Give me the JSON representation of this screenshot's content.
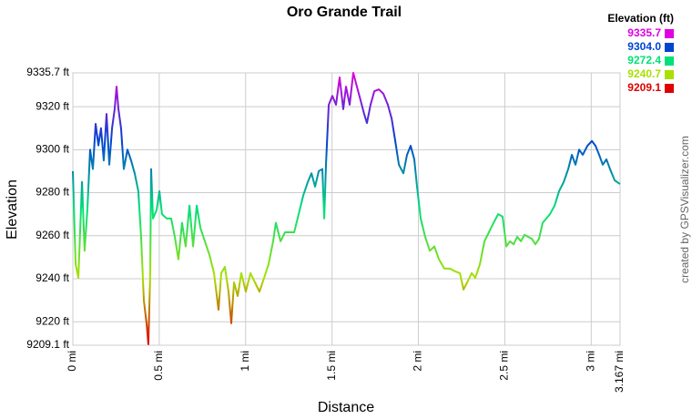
{
  "chart_data": {
    "type": "line",
    "title": "Oro Grande Trail",
    "xlabel": "Distance",
    "ylabel": "Elevation",
    "credit": "created by GPSVisualizer.com",
    "legend_title": "Elevation (ft)",
    "color_scale": [
      {
        "value": 9335.7,
        "color": "#e000e0"
      },
      {
        "value": 9304,
        "label": "9304.0",
        "color": "#0044d0"
      },
      {
        "value": 9272.4,
        "color": "#00e07a"
      },
      {
        "value": 9240.7,
        "color": "#a8e000"
      },
      {
        "value": 9209.1,
        "color": "#e00000"
      }
    ],
    "grid": true,
    "xlim": [
      0,
      3.167
    ],
    "xticks": [
      {
        "value": 0,
        "label": "0 mi"
      },
      {
        "value": 0.5,
        "label": "0.5 mi"
      },
      {
        "value": 1,
        "label": "1 mi"
      },
      {
        "value": 1.5,
        "label": "1.5 mi"
      },
      {
        "value": 2,
        "label": "2 mi"
      },
      {
        "value": 2.5,
        "label": "2.5 mi"
      },
      {
        "value": 3,
        "label": "3 mi"
      },
      {
        "value": 3.167,
        "label": "3.167 mi"
      }
    ],
    "ylim": [
      9209.1,
      9335.7
    ],
    "yticks": [
      {
        "value": 9209.1,
        "label": "9209.1 ft"
      },
      {
        "value": 9220,
        "label": "9220 ft"
      },
      {
        "value": 9240,
        "label": "9240 ft"
      },
      {
        "value": 9260,
        "label": "9260 ft"
      },
      {
        "value": 9280,
        "label": "9280 ft"
      },
      {
        "value": 9300,
        "label": "9300 ft"
      },
      {
        "value": 9320,
        "label": "9320 ft"
      },
      {
        "value": 9335.7,
        "label": "9335.7 ft"
      }
    ],
    "x": [
      0,
      0.016,
      0.032,
      0.053,
      0.068,
      0.084,
      0.1,
      0.116,
      0.132,
      0.148,
      0.163,
      0.179,
      0.195,
      0.211,
      0.227,
      0.242,
      0.253,
      0.264,
      0.279,
      0.295,
      0.316,
      0.337,
      0.358,
      0.379,
      0.395,
      0.411,
      0.427,
      0.437,
      0.448,
      0.453,
      0.464,
      0.485,
      0.501,
      0.516,
      0.543,
      0.569,
      0.59,
      0.611,
      0.632,
      0.653,
      0.675,
      0.696,
      0.717,
      0.738,
      0.764,
      0.791,
      0.817,
      0.843,
      0.859,
      0.88,
      0.901,
      0.917,
      0.933,
      0.954,
      0.975,
      1.001,
      1.028,
      1.054,
      1.08,
      1.107,
      1.133,
      1.159,
      1.175,
      1.202,
      1.228,
      1.254,
      1.281,
      1.307,
      1.333,
      1.36,
      1.381,
      1.402,
      1.423,
      1.444,
      1.455,
      1.465,
      1.481,
      1.502,
      1.523,
      1.544,
      1.565,
      1.581,
      1.602,
      1.623,
      1.644,
      1.665,
      1.686,
      1.702,
      1.723,
      1.745,
      1.771,
      1.797,
      1.823,
      1.845,
      1.866,
      1.887,
      1.913,
      1.934,
      1.955,
      1.976,
      1.992,
      2.013,
      2.039,
      2.066,
      2.092,
      2.119,
      2.15,
      2.182,
      2.213,
      2.24,
      2.261,
      2.282,
      2.308,
      2.329,
      2.356,
      2.382,
      2.408,
      2.435,
      2.461,
      2.487,
      2.509,
      2.53,
      2.551,
      2.572,
      2.593,
      2.614,
      2.635,
      2.656,
      2.677,
      2.698,
      2.719,
      2.74,
      2.761,
      2.788,
      2.814,
      2.841,
      2.867,
      2.888,
      2.909,
      2.93,
      2.951,
      2.978,
      3.004,
      3.025,
      3.046,
      3.067,
      3.088,
      3.109,
      3.136,
      3.167
    ],
    "values": [
      9290,
      9246.8,
      9240.4,
      9285,
      9253,
      9272,
      9300,
      9291,
      9312,
      9302,
      9310,
      9295,
      9316.6,
      9293,
      9310,
      9318.8,
      9329.3,
      9318.8,
      9310,
      9291,
      9300,
      9295,
      9289,
      9280.7,
      9259.5,
      9229.9,
      9219,
      9209.6,
      9242.6,
      9291,
      9268,
      9272,
      9280.7,
      9270,
      9268,
      9268,
      9259.5,
      9249,
      9266,
      9255,
      9274,
      9255,
      9274,
      9263.7,
      9257.4,
      9251,
      9242.6,
      9225.6,
      9242.6,
      9245.5,
      9234,
      9219.3,
      9238.3,
      9232,
      9242.6,
      9234,
      9242.6,
      9238.3,
      9234,
      9240.4,
      9246.8,
      9257.4,
      9266,
      9257.4,
      9261.6,
      9261.6,
      9261.6,
      9270,
      9278.6,
      9285,
      9289,
      9282.8,
      9290,
      9291,
      9268,
      9293,
      9320.9,
      9325,
      9320.9,
      9333.6,
      9318.8,
      9329.3,
      9320.9,
      9335.7,
      9329.3,
      9323,
      9316.6,
      9312.4,
      9320.9,
      9327.2,
      9328,
      9326,
      9320.9,
      9314.5,
      9304,
      9293,
      9289,
      9297.6,
      9301.8,
      9295.5,
      9282.8,
      9268,
      9259.5,
      9253,
      9255,
      9249,
      9244.7,
      9244.7,
      9243.4,
      9242.6,
      9235,
      9238.3,
      9242.6,
      9240.4,
      9246.8,
      9257.4,
      9261.6,
      9266,
      9270,
      9268.9,
      9255,
      9257.4,
      9256,
      9259.5,
      9257.4,
      9260.4,
      9259.5,
      9258.6,
      9256,
      9258.6,
      9266,
      9268,
      9270,
      9274,
      9280.7,
      9285,
      9291,
      9297.6,
      9293,
      9300,
      9297.6,
      9301.8,
      9304,
      9301.8,
      9297.6,
      9293,
      9295.5,
      9291,
      9285.7,
      9284
    ]
  }
}
